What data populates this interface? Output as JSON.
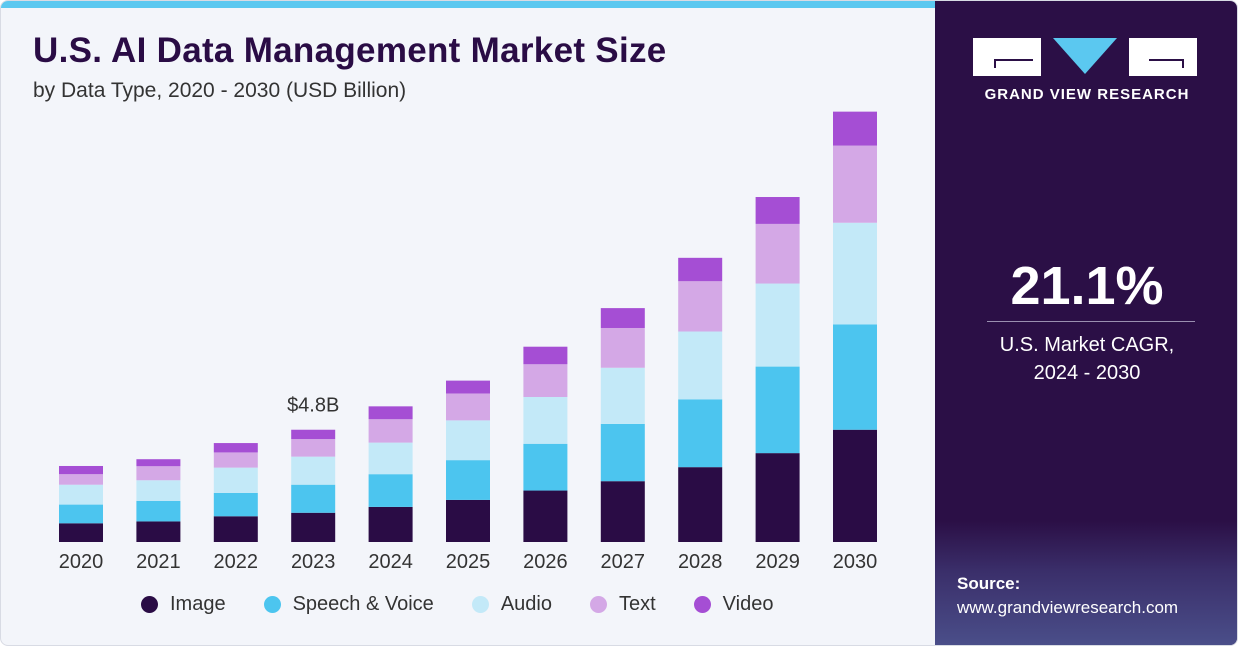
{
  "header": {
    "title": "U.S. AI Data Management Market Size",
    "subtitle": "by Data Type, 2020 - 2030 (USD Billion)"
  },
  "sidebar": {
    "brand": "GRAND VIEW RESEARCH",
    "cagr_value": "21.1%",
    "cagr_label_line1": "U.S. Market CAGR,",
    "cagr_label_line2": "2024 - 2030",
    "source_heading": "Source:",
    "source_url": "www.grandviewresearch.com"
  },
  "chart_data": {
    "type": "bar",
    "stacked": true,
    "title": "U.S. AI Data Management Market Size",
    "subtitle": "by Data Type, 2020 - 2030 (USD Billion)",
    "xlabel": "",
    "ylabel": "USD Billion",
    "ylim": [
      0,
      18
    ],
    "categories": [
      "2020",
      "2021",
      "2022",
      "2023",
      "2024",
      "2025",
      "2026",
      "2027",
      "2028",
      "2029",
      "2030"
    ],
    "annotations": [
      {
        "category": "2023",
        "text": "$4.8B"
      }
    ],
    "legend_position": "bottom",
    "colors": {
      "Image": "#2a0c45",
      "Speech & Voice": "#4cc5ef",
      "Audio": "#c3e9f8",
      "Text": "#d4a8e6",
      "Video": "#a54ed4"
    },
    "series": [
      {
        "name": "Image",
        "values": [
          0.8,
          0.88,
          1.1,
          1.25,
          1.5,
          1.8,
          2.2,
          2.6,
          3.2,
          3.8,
          4.8
        ]
      },
      {
        "name": "Speech & Voice",
        "values": [
          0.8,
          0.88,
          1.0,
          1.2,
          1.4,
          1.7,
          2.0,
          2.45,
          2.9,
          3.7,
          4.5
        ]
      },
      {
        "name": "Audio",
        "values": [
          0.85,
          0.88,
          1.08,
          1.2,
          1.35,
          1.7,
          2.0,
          2.4,
          2.9,
          3.55,
          4.35
        ]
      },
      {
        "name": "Text",
        "values": [
          0.45,
          0.6,
          0.65,
          0.75,
          1.0,
          1.15,
          1.4,
          1.7,
          2.15,
          2.55,
          3.3
        ]
      },
      {
        "name": "Video",
        "values": [
          0.35,
          0.3,
          0.4,
          0.4,
          0.55,
          0.55,
          0.75,
          0.85,
          1.0,
          1.15,
          1.45
        ]
      }
    ]
  }
}
